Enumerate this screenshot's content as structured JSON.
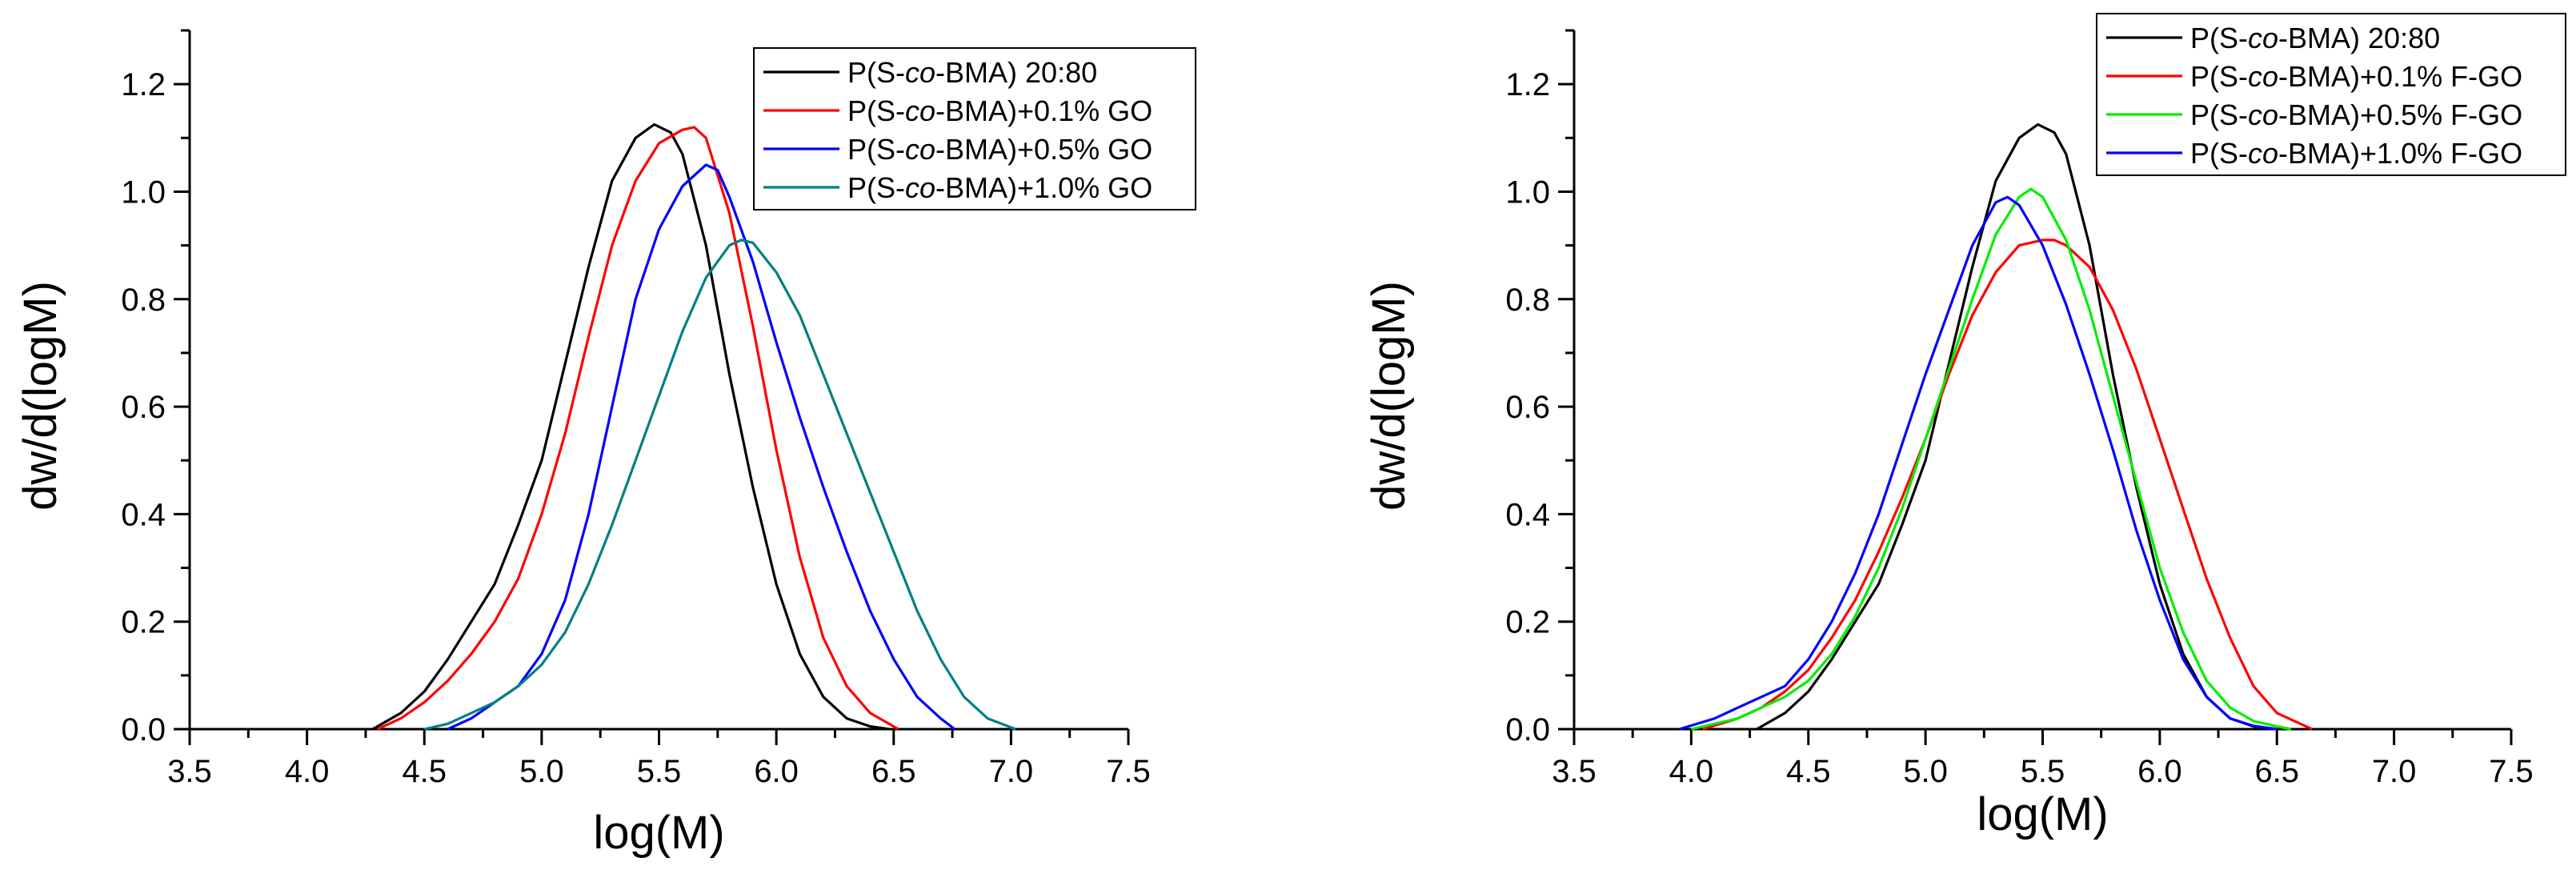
{
  "chart_data": [
    {
      "type": "line",
      "title": "",
      "xlabel": "log(M)",
      "ylabel": "dw/d(logM)",
      "xlim": [
        3.5,
        7.5
      ],
      "ylim": [
        0,
        1.3
      ],
      "xticks": [
        "3.5",
        "4.0",
        "4.5",
        "5.0",
        "5.5",
        "6.0",
        "6.5",
        "7.0",
        "7.5"
      ],
      "yticks": [
        "0.0",
        "0.2",
        "0.4",
        "0.6",
        "0.8",
        "1.0",
        "1.2"
      ],
      "legend_position": "top-right",
      "series": [
        {
          "name_prefix": "P(S-",
          "name_italic": "co",
          "name_suffix": "-BMA) 20:80",
          "color": "#000000",
          "x": [
            4.28,
            4.4,
            4.5,
            4.6,
            4.7,
            4.8,
            4.9,
            5.0,
            5.1,
            5.2,
            5.3,
            5.4,
            5.48,
            5.55,
            5.6,
            5.7,
            5.8,
            5.9,
            6.0,
            6.1,
            6.2,
            6.3,
            6.4,
            6.48
          ],
          "y": [
            0.0,
            0.03,
            0.07,
            0.13,
            0.2,
            0.27,
            0.38,
            0.5,
            0.68,
            0.86,
            1.02,
            1.1,
            1.125,
            1.11,
            1.07,
            0.9,
            0.66,
            0.45,
            0.27,
            0.14,
            0.06,
            0.02,
            0.005,
            0.0
          ]
        },
        {
          "name_prefix": "P(S-",
          "name_italic": "co",
          "name_suffix": "-BMA)+0.1% GO",
          "color": "#ff0000",
          "x": [
            4.3,
            4.4,
            4.5,
            4.6,
            4.7,
            4.8,
            4.9,
            5.0,
            5.1,
            5.2,
            5.3,
            5.4,
            5.5,
            5.6,
            5.65,
            5.7,
            5.8,
            5.9,
            6.0,
            6.1,
            6.2,
            6.3,
            6.4,
            6.52
          ],
          "y": [
            0.0,
            0.02,
            0.05,
            0.09,
            0.14,
            0.2,
            0.28,
            0.4,
            0.55,
            0.73,
            0.9,
            1.02,
            1.09,
            1.115,
            1.12,
            1.1,
            0.96,
            0.75,
            0.52,
            0.32,
            0.17,
            0.08,
            0.03,
            0.0
          ]
        },
        {
          "name_prefix": "P(S-",
          "name_italic": "co",
          "name_suffix": "-BMA)+0.5% GO",
          "color": "#0000ff",
          "x": [
            4.6,
            4.7,
            4.8,
            4.9,
            5.0,
            5.1,
            5.2,
            5.3,
            5.4,
            5.5,
            5.6,
            5.7,
            5.75,
            5.8,
            5.9,
            6.0,
            6.1,
            6.2,
            6.3,
            6.4,
            6.5,
            6.6,
            6.7,
            6.76
          ],
          "y": [
            0.0,
            0.02,
            0.05,
            0.08,
            0.14,
            0.24,
            0.4,
            0.6,
            0.8,
            0.93,
            1.01,
            1.05,
            1.04,
            0.99,
            0.87,
            0.72,
            0.58,
            0.45,
            0.33,
            0.22,
            0.13,
            0.06,
            0.02,
            0.0
          ]
        },
        {
          "name_prefix": "P(S-",
          "name_italic": "co",
          "name_suffix": "-BMA)+1.0% GO",
          "color": "#008080",
          "x": [
            4.5,
            4.6,
            4.7,
            4.8,
            4.9,
            5.0,
            5.1,
            5.2,
            5.3,
            5.4,
            5.5,
            5.6,
            5.7,
            5.8,
            5.85,
            5.9,
            6.0,
            6.1,
            6.2,
            6.3,
            6.4,
            6.5,
            6.6,
            6.7,
            6.8,
            6.9,
            7.02
          ],
          "y": [
            0.0,
            0.01,
            0.03,
            0.05,
            0.08,
            0.12,
            0.18,
            0.27,
            0.38,
            0.5,
            0.62,
            0.74,
            0.84,
            0.9,
            0.91,
            0.905,
            0.85,
            0.77,
            0.66,
            0.55,
            0.44,
            0.33,
            0.22,
            0.13,
            0.06,
            0.02,
            0.0
          ]
        }
      ]
    },
    {
      "type": "line",
      "title": "",
      "xlabel": "log(M)",
      "ylabel": "dw/d(logM)",
      "xlim": [
        3.5,
        7.5
      ],
      "ylim": [
        0,
        1.3
      ],
      "xticks": [
        "3.5",
        "4.0",
        "4.5",
        "5.0",
        "5.5",
        "6.0",
        "6.5",
        "7.0",
        "7.5"
      ],
      "yticks": [
        "0.0",
        "0.2",
        "0.4",
        "0.6",
        "0.8",
        "1.0",
        "1.2"
      ],
      "legend_position": "top-right",
      "series": [
        {
          "name_prefix": "P(S-",
          "name_italic": "co",
          "name_suffix": "-BMA) 20:80",
          "color": "#000000",
          "x": [
            4.28,
            4.4,
            4.5,
            4.6,
            4.7,
            4.8,
            4.9,
            5.0,
            5.1,
            5.2,
            5.3,
            5.4,
            5.48,
            5.55,
            5.6,
            5.7,
            5.8,
            5.9,
            6.0,
            6.1,
            6.2,
            6.3,
            6.4,
            6.48
          ],
          "y": [
            0.0,
            0.03,
            0.07,
            0.13,
            0.2,
            0.27,
            0.38,
            0.5,
            0.68,
            0.86,
            1.02,
            1.1,
            1.125,
            1.11,
            1.07,
            0.9,
            0.66,
            0.45,
            0.27,
            0.14,
            0.06,
            0.02,
            0.005,
            0.0
          ]
        },
        {
          "name_prefix": "P(S-",
          "name_italic": "co",
          "name_suffix": "-BMA)+0.1% F-GO",
          "color": "#ff0000",
          "x": [
            4.05,
            4.2,
            4.3,
            4.4,
            4.5,
            4.6,
            4.7,
            4.8,
            4.9,
            5.0,
            5.1,
            5.2,
            5.3,
            5.4,
            5.5,
            5.55,
            5.6,
            5.7,
            5.8,
            5.9,
            6.0,
            6.1,
            6.2,
            6.3,
            6.4,
            6.5,
            6.6,
            6.65
          ],
          "y": [
            0.0,
            0.02,
            0.04,
            0.07,
            0.11,
            0.17,
            0.24,
            0.33,
            0.43,
            0.54,
            0.66,
            0.77,
            0.85,
            0.9,
            0.91,
            0.91,
            0.9,
            0.86,
            0.78,
            0.67,
            0.54,
            0.41,
            0.28,
            0.17,
            0.08,
            0.03,
            0.01,
            0.0
          ]
        },
        {
          "name_prefix": "P(S-",
          "name_italic": "co",
          "name_suffix": "-BMA)+0.5% F-GO",
          "color": "#00ee00",
          "x": [
            4.0,
            4.1,
            4.2,
            4.3,
            4.4,
            4.5,
            4.6,
            4.7,
            4.8,
            4.9,
            5.0,
            5.1,
            5.2,
            5.3,
            5.4,
            5.45,
            5.5,
            5.6,
            5.7,
            5.8,
            5.9,
            6.0,
            6.1,
            6.2,
            6.3,
            6.4,
            6.5,
            6.56
          ],
          "y": [
            0.0,
            0.01,
            0.02,
            0.04,
            0.06,
            0.09,
            0.14,
            0.21,
            0.3,
            0.41,
            0.54,
            0.67,
            0.8,
            0.92,
            0.99,
            1.005,
            0.99,
            0.91,
            0.78,
            0.62,
            0.46,
            0.3,
            0.18,
            0.09,
            0.04,
            0.015,
            0.005,
            0.0
          ]
        },
        {
          "name_prefix": "P(S-",
          "name_italic": "co",
          "name_suffix": "-BMA)+1.0% F-GO",
          "color": "#0000ff",
          "x": [
            3.95,
            4.1,
            4.2,
            4.3,
            4.4,
            4.5,
            4.6,
            4.7,
            4.8,
            4.9,
            5.0,
            5.1,
            5.2,
            5.3,
            5.35,
            5.4,
            5.5,
            5.6,
            5.7,
            5.8,
            5.9,
            6.0,
            6.1,
            6.2,
            6.3,
            6.4,
            6.5
          ],
          "y": [
            0.0,
            0.02,
            0.04,
            0.06,
            0.08,
            0.13,
            0.2,
            0.29,
            0.4,
            0.53,
            0.66,
            0.78,
            0.9,
            0.98,
            0.99,
            0.975,
            0.9,
            0.79,
            0.66,
            0.52,
            0.37,
            0.24,
            0.13,
            0.06,
            0.02,
            0.006,
            0.0
          ]
        }
      ]
    }
  ]
}
